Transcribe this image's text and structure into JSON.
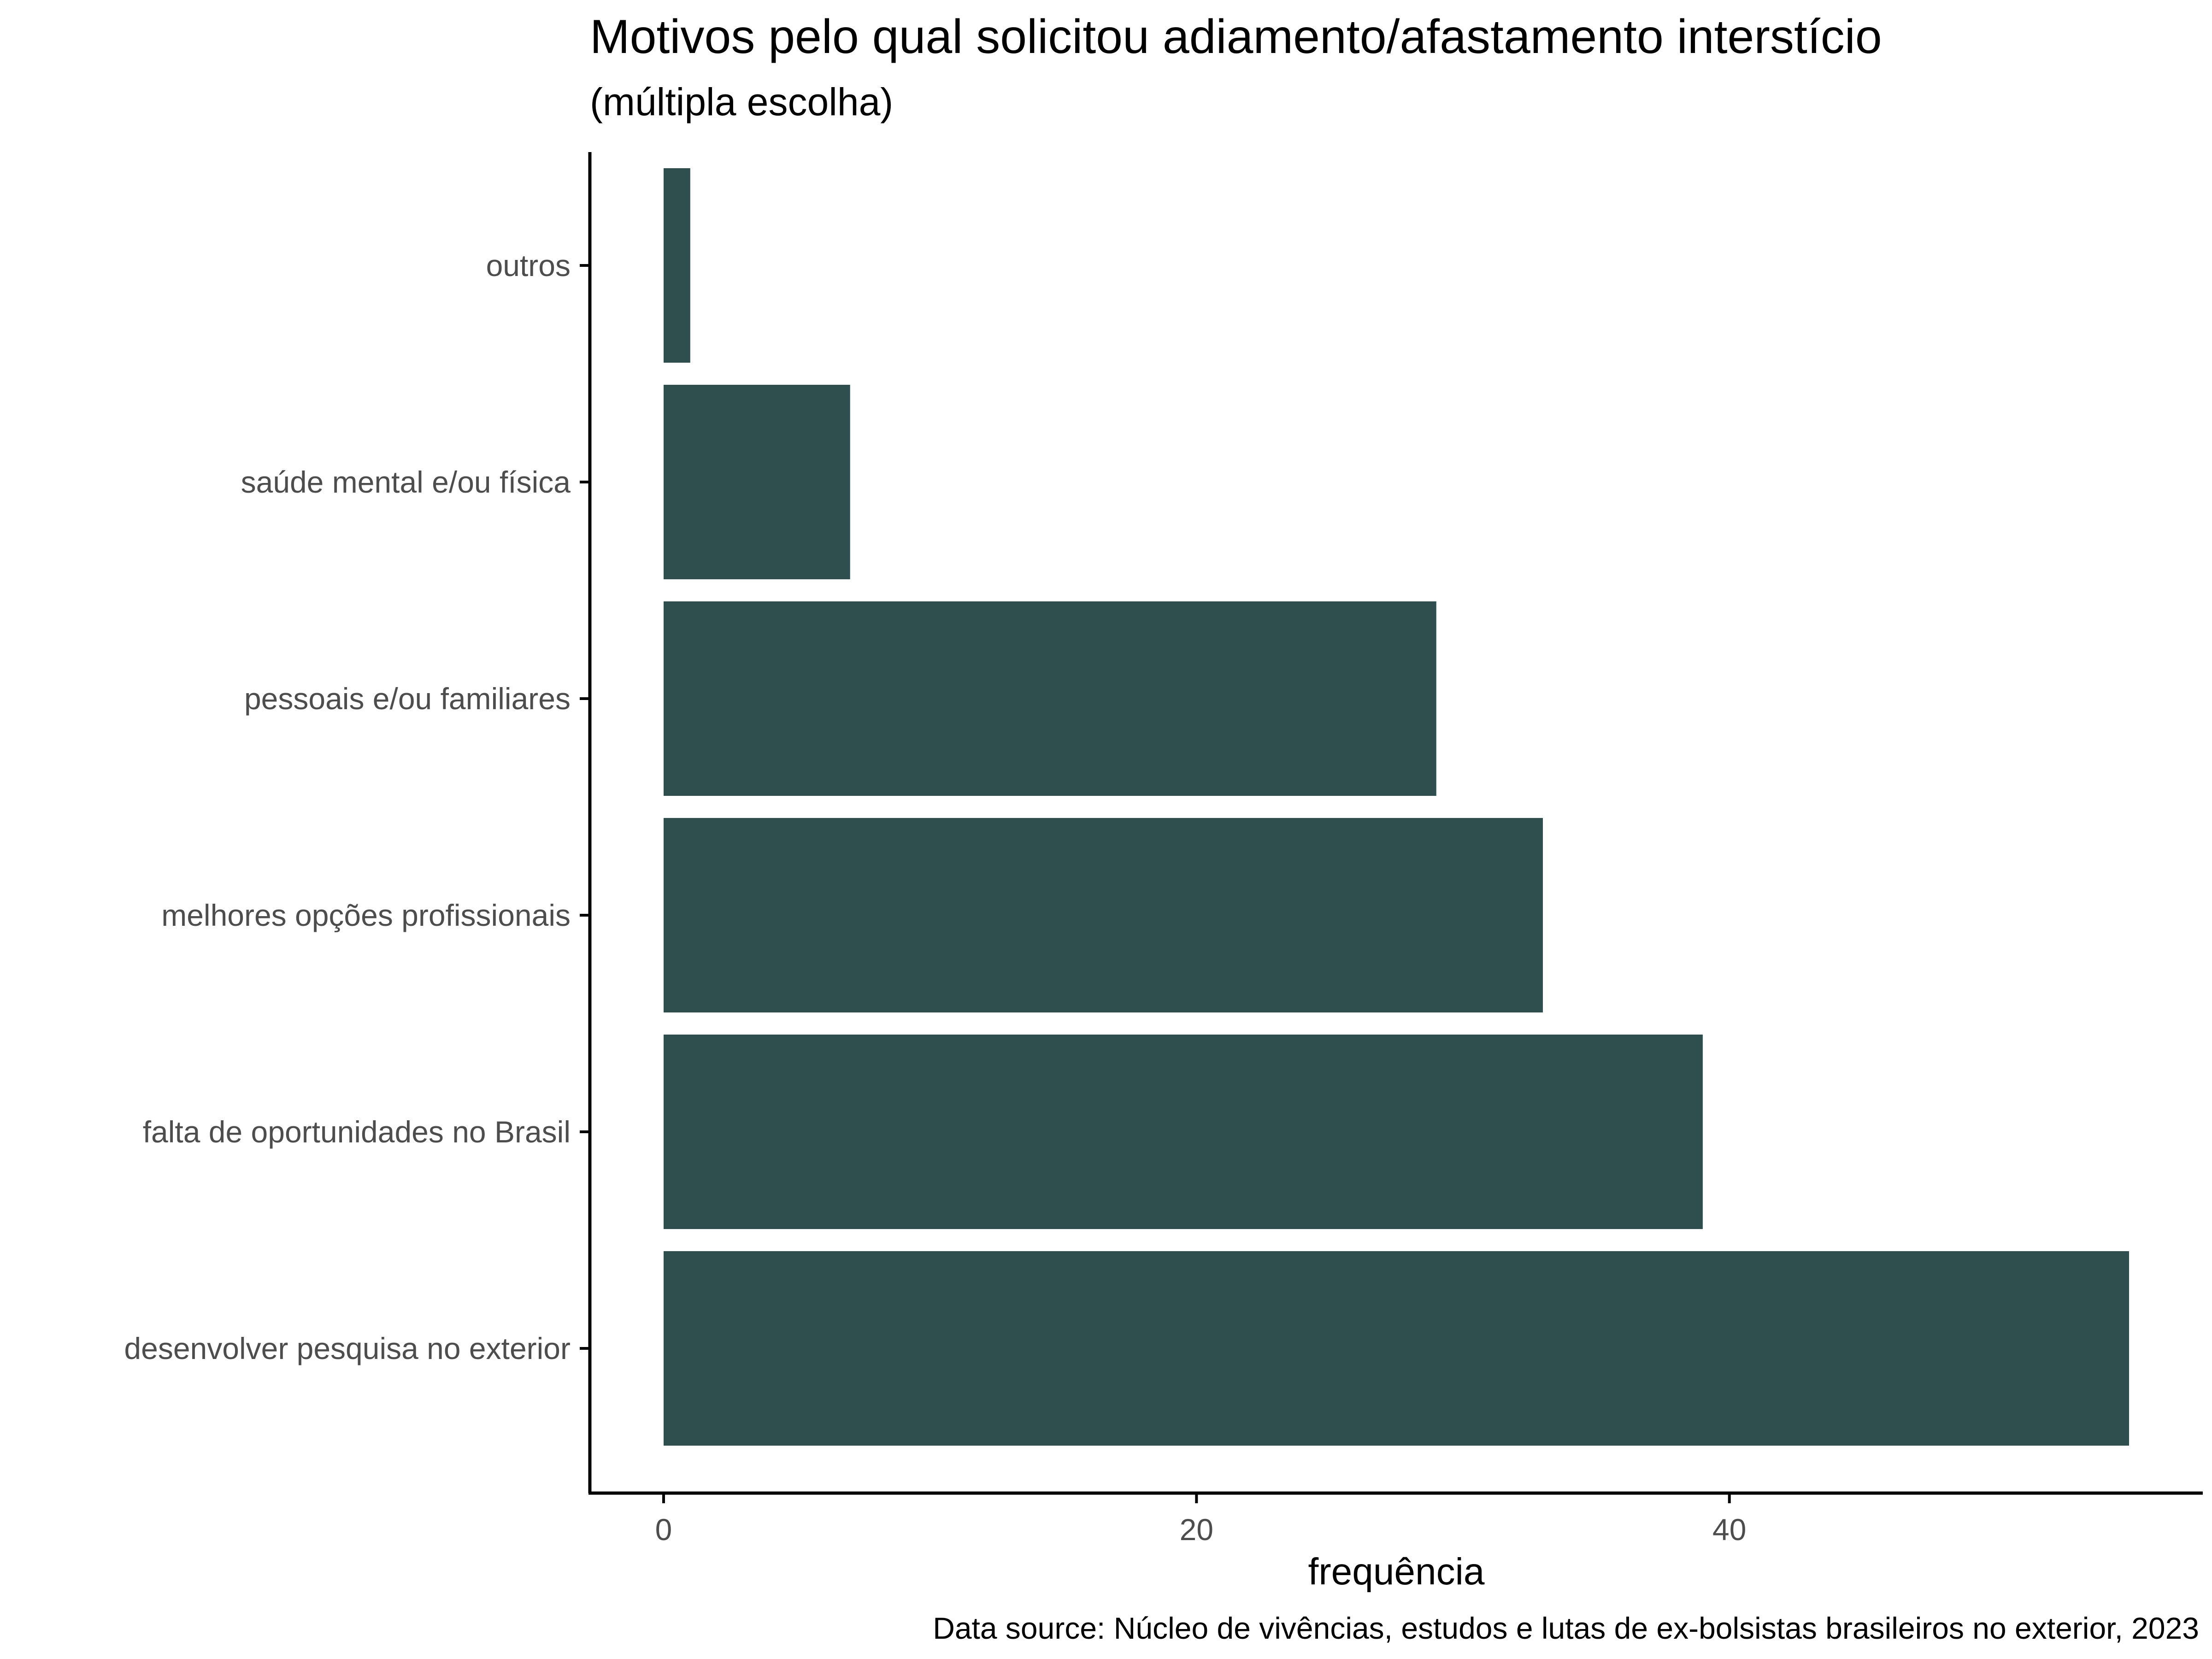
{
  "chart_data": {
    "type": "bar",
    "orientation": "horizontal",
    "title": "Motivos pelo qual solicitou adiamento/afastamento interstício",
    "subtitle": "(múltipla escolha)",
    "xlabel": "frequência",
    "ylabel": "",
    "caption": "Data source: Núcleo de vivências, estudos e lutas de ex-bolsistas brasileiros no exterior, 2023",
    "categories": [
      "desenvolver pesquisa no exterior",
      "falta de oportunidades no Brasil",
      "melhores opções profissionais",
      "pessoais e/ou familiares",
      "saúde mental e/ou física",
      "outros"
    ],
    "values": [
      55,
      39,
      33,
      29,
      7,
      1
    ],
    "xlim": [
      0,
      57.8
    ],
    "xticks": [
      "0",
      "20",
      "40"
    ],
    "grid": false,
    "legend": "none",
    "colors": {
      "bar": "#2f4f4f",
      "axis": "#000000",
      "tick_text": "#4d4d4d"
    }
  }
}
